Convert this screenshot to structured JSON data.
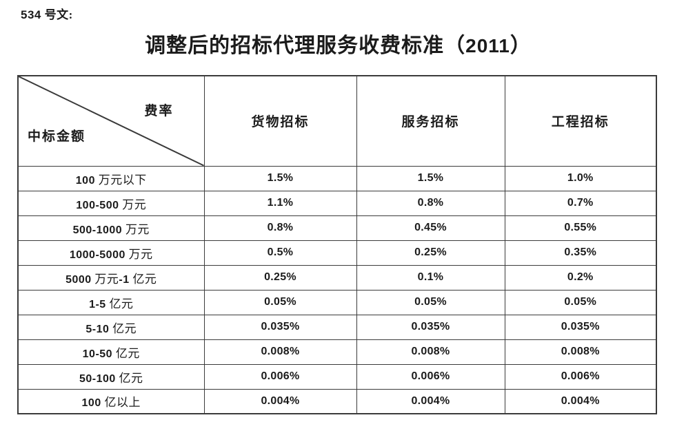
{
  "doc_label": "534 号文:",
  "title": "调整后的招标代理服务收费标准（2011）",
  "table": {
    "corner": {
      "top_right_label": "费率",
      "bottom_left_label": "中标金额"
    },
    "columns": [
      "货物招标",
      "服务招标",
      "工程招标"
    ],
    "rows": [
      {
        "range": "100 万元以下",
        "values": [
          "1.5%",
          "1.5%",
          "1.0%"
        ]
      },
      {
        "range": "100-500 万元",
        "values": [
          "1.1%",
          "0.8%",
          "0.7%"
        ]
      },
      {
        "range": "500-1000 万元",
        "values": [
          "0.8%",
          "0.45%",
          "0.55%"
        ]
      },
      {
        "range": "1000-5000 万元",
        "values": [
          "0.5%",
          "0.25%",
          "0.35%"
        ]
      },
      {
        "range": "5000 万元-1 亿元",
        "values": [
          "0.25%",
          "0.1%",
          "0.2%"
        ]
      },
      {
        "range": "1-5 亿元",
        "values": [
          "0.05%",
          "0.05%",
          "0.05%"
        ]
      },
      {
        "range": "5-10 亿元",
        "values": [
          "0.035%",
          "0.035%",
          "0.035%"
        ]
      },
      {
        "range": "10-50 亿元",
        "values": [
          "0.008%",
          "0.008%",
          "0.008%"
        ]
      },
      {
        "range": "50-100 亿元",
        "values": [
          "0.006%",
          "0.006%",
          "0.006%"
        ]
      },
      {
        "range": "100 亿以上",
        "values": [
          "0.004%",
          "0.004%",
          "0.004%"
        ]
      }
    ]
  },
  "colors": {
    "border": "#3a3a3a",
    "text": "#1b1b1b",
    "background": "#ffffff"
  }
}
